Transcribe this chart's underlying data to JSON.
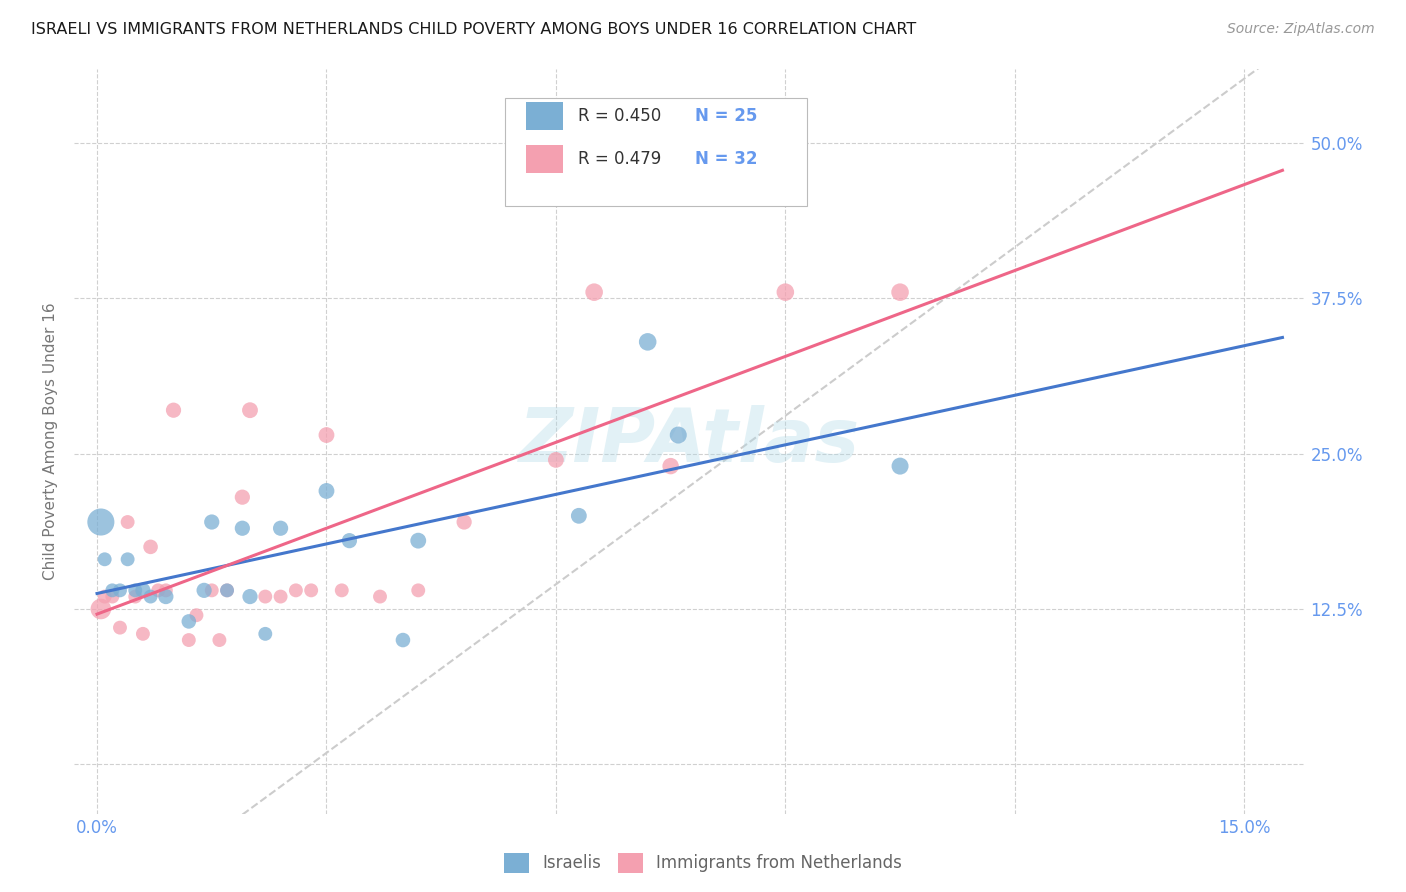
{
  "title": "ISRAELI VS IMMIGRANTS FROM NETHERLANDS CHILD POVERTY AMONG BOYS UNDER 16 CORRELATION CHART",
  "source": "Source: ZipAtlas.com",
  "ylabel": "Child Poverty Among Boys Under 16",
  "x_ticks": [
    0.0,
    0.03,
    0.06,
    0.09,
    0.12,
    0.15
  ],
  "x_tick_labels_show": [
    "0.0%",
    "",
    "",
    "",
    "",
    "15.0%"
  ],
  "y_ticks": [
    0.0,
    0.125,
    0.25,
    0.375,
    0.5
  ],
  "y_tick_labels_right": [
    "",
    "12.5%",
    "25.0%",
    "37.5%",
    "50.0%"
  ],
  "xlim": [
    -0.003,
    0.158
  ],
  "ylim": [
    -0.04,
    0.56
  ],
  "background_color": "#ffffff",
  "grid_color": "#d0d0d0",
  "blue_color": "#7bafd4",
  "pink_color": "#f4a0b0",
  "blue_line_color": "#4477cc",
  "pink_line_color": "#ee6688",
  "diagonal_color": "#cccccc",
  "label_color": "#6699ee",
  "israelis_label": "Israelis",
  "netherlands_label": "Immigrants from Netherlands",
  "israelis_x": [
    0.0005,
    0.001,
    0.002,
    0.003,
    0.004,
    0.005,
    0.006,
    0.007,
    0.009,
    0.012,
    0.014,
    0.015,
    0.017,
    0.019,
    0.02,
    0.022,
    0.024,
    0.03,
    0.033,
    0.04,
    0.042,
    0.063,
    0.072,
    0.076,
    0.105
  ],
  "israelis_y": [
    0.195,
    0.165,
    0.14,
    0.14,
    0.165,
    0.14,
    0.14,
    0.135,
    0.135,
    0.115,
    0.14,
    0.195,
    0.14,
    0.19,
    0.135,
    0.105,
    0.19,
    0.22,
    0.18,
    0.1,
    0.18,
    0.2,
    0.34,
    0.265,
    0.24
  ],
  "netherlands_x": [
    0.0005,
    0.001,
    0.002,
    0.003,
    0.004,
    0.005,
    0.006,
    0.007,
    0.008,
    0.009,
    0.01,
    0.012,
    0.013,
    0.015,
    0.016,
    0.017,
    0.019,
    0.02,
    0.022,
    0.024,
    0.026,
    0.028,
    0.03,
    0.032,
    0.037,
    0.042,
    0.048,
    0.06,
    0.065,
    0.075,
    0.09,
    0.105
  ],
  "netherlands_y": [
    0.125,
    0.135,
    0.135,
    0.11,
    0.195,
    0.135,
    0.105,
    0.175,
    0.14,
    0.14,
    0.285,
    0.1,
    0.12,
    0.14,
    0.1,
    0.14,
    0.215,
    0.285,
    0.135,
    0.135,
    0.14,
    0.14,
    0.265,
    0.14,
    0.135,
    0.14,
    0.195,
    0.245,
    0.38,
    0.24,
    0.38,
    0.38
  ],
  "blue_marker_sizes": [
    380,
    100,
    100,
    100,
    100,
    100,
    120,
    100,
    120,
    110,
    120,
    120,
    100,
    120,
    120,
    100,
    120,
    130,
    120,
    110,
    130,
    130,
    160,
    150,
    150
  ],
  "pink_marker_sizes": [
    220,
    100,
    100,
    100,
    100,
    100,
    100,
    110,
    100,
    100,
    120,
    100,
    100,
    100,
    100,
    100,
    120,
    130,
    100,
    100,
    100,
    100,
    130,
    100,
    100,
    100,
    120,
    130,
    160,
    140,
    160,
    160
  ]
}
